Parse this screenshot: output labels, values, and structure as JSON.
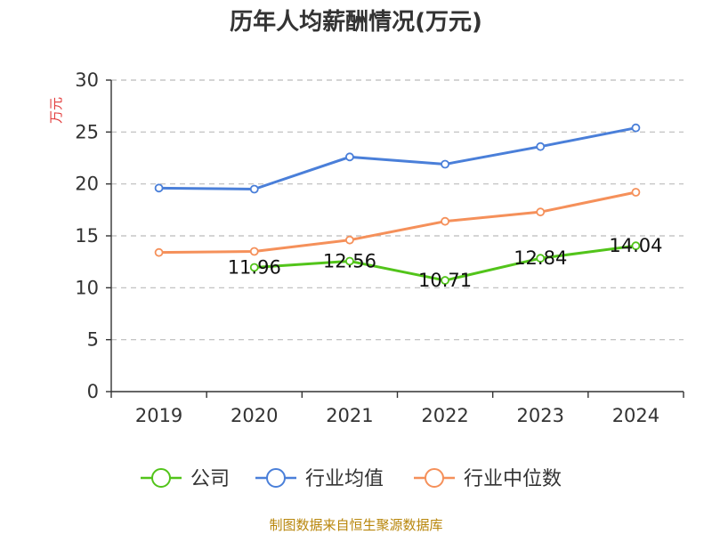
{
  "chart_data": {
    "type": "line",
    "title": "历年人均薪酬情况(万元)",
    "ylabel": "万元",
    "xlabel": "",
    "categories": [
      "2019",
      "2020",
      "2021",
      "2022",
      "2023",
      "2024"
    ],
    "ylim": [
      0,
      30
    ],
    "yticks": [
      0,
      5,
      10,
      15,
      20,
      25,
      30
    ],
    "grid": true,
    "legend_position": "bottom",
    "series": [
      {
        "name": "公司",
        "color": "#52c41a",
        "values": [
          null,
          11.96,
          12.56,
          10.71,
          12.84,
          14.04
        ],
        "labels": [
          "",
          "11.96",
          "12.56",
          "10.71",
          "12.84",
          "14.04"
        ]
      },
      {
        "name": "行业均值",
        "color": "#4a7fd9",
        "values": [
          19.6,
          19.5,
          22.6,
          21.9,
          23.6,
          25.4
        ]
      },
      {
        "name": "行业中位数",
        "color": "#f5905a",
        "values": [
          13.4,
          13.5,
          14.6,
          16.4,
          17.3,
          19.2
        ]
      }
    ]
  },
  "source": "制图数据来自恒生聚源数据库"
}
